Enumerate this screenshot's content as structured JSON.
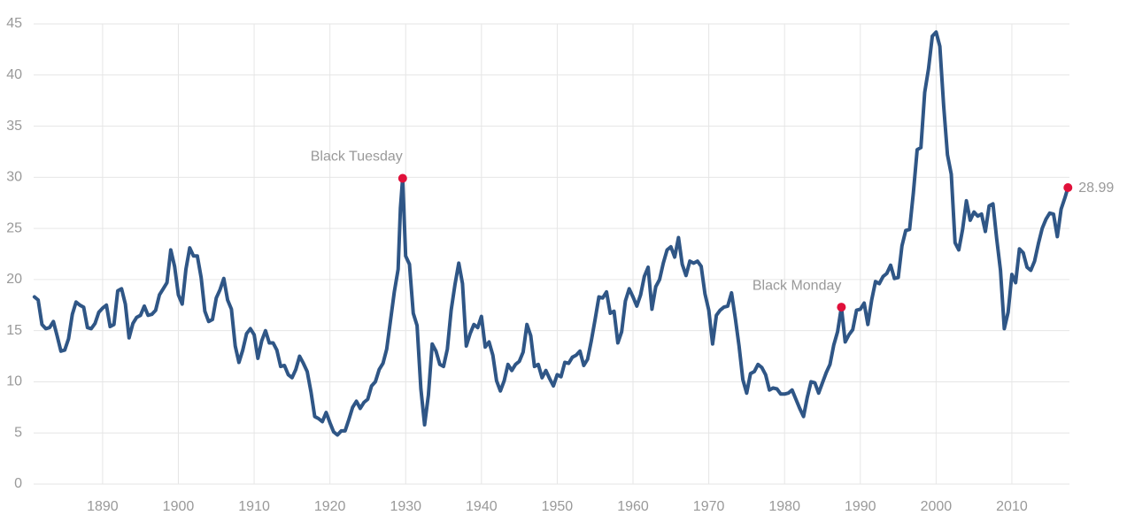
{
  "chart_data": {
    "type": "line",
    "color": "#2f5686",
    "marker_color": "#e0103a",
    "grid": true,
    "xlim": [
      1880.9,
      2017.6
    ],
    "ylim": [
      0,
      45
    ],
    "xticks": [
      1890,
      1900,
      1910,
      1920,
      1930,
      1940,
      1950,
      1960,
      1970,
      1980,
      1990,
      2000,
      2010
    ],
    "yticks": [
      0,
      5,
      10,
      15,
      20,
      25,
      30,
      35,
      40,
      45
    ],
    "x": [
      1881,
      1881.5,
      1882,
      1882.5,
      1883,
      1883.5,
      1884,
      1884.5,
      1885,
      1885.5,
      1886,
      1886.5,
      1887,
      1887.5,
      1888,
      1888.5,
      1889,
      1889.5,
      1890,
      1890.5,
      1891,
      1891.5,
      1892,
      1892.5,
      1893,
      1893.5,
      1894,
      1894.5,
      1895,
      1895.5,
      1896,
      1896.5,
      1897,
      1897.5,
      1898,
      1898.5,
      1899,
      1899.5,
      1900,
      1900.5,
      1901,
      1901.5,
      1902,
      1902.5,
      1903,
      1903.5,
      1904,
      1904.5,
      1905,
      1905.5,
      1906,
      1906.5,
      1907,
      1907.5,
      1908,
      1908.5,
      1909,
      1909.5,
      1910,
      1910.5,
      1911,
      1911.5,
      1912,
      1912.5,
      1913,
      1913.5,
      1914,
      1914.5,
      1915,
      1915.5,
      1916,
      1916.5,
      1917,
      1917.5,
      1918,
      1918.5,
      1919,
      1919.5,
      1920,
      1920.5,
      1921,
      1921.5,
      1922,
      1922.5,
      1923,
      1923.5,
      1924,
      1924.5,
      1925,
      1925.5,
      1926,
      1926.5,
      1927,
      1927.5,
      1928,
      1928.5,
      1929,
      1929.3,
      1929.6,
      1930,
      1930.5,
      1931,
      1931.5,
      1932,
      1932.5,
      1933,
      1933.5,
      1934,
      1934.5,
      1935,
      1935.5,
      1936,
      1936.5,
      1937,
      1937.5,
      1938,
      1938.5,
      1939,
      1939.5,
      1940,
      1940.5,
      1941,
      1941.5,
      1942,
      1942.5,
      1943,
      1943.5,
      1944,
      1944.5,
      1945,
      1945.5,
      1946,
      1946.5,
      1947,
      1947.5,
      1948,
      1948.5,
      1949,
      1949.5,
      1950,
      1950.5,
      1951,
      1951.5,
      1952,
      1952.5,
      1953,
      1953.5,
      1954,
      1954.5,
      1955,
      1955.5,
      1956,
      1956.5,
      1957,
      1957.5,
      1958,
      1958.5,
      1959,
      1959.5,
      1960,
      1960.5,
      1961,
      1961.5,
      1962,
      1962.5,
      1963,
      1963.5,
      1964,
      1964.5,
      1965,
      1965.5,
      1966,
      1966.5,
      1967,
      1967.5,
      1968,
      1968.5,
      1969,
      1969.5,
      1970,
      1970.5,
      1971,
      1971.5,
      1972,
      1972.5,
      1973,
      1973.5,
      1974,
      1974.5,
      1975,
      1975.5,
      1976,
      1976.5,
      1977,
      1977.5,
      1978,
      1978.5,
      1979,
      1979.5,
      1980,
      1980.5,
      1981,
      1981.5,
      1982,
      1982.5,
      1983,
      1983.5,
      1984,
      1984.5,
      1985,
      1985.5,
      1986,
      1986.5,
      1987,
      1987.5,
      1988,
      1988.5,
      1989,
      1989.5,
      1990,
      1990.5,
      1991,
      1991.5,
      1992,
      1992.5,
      1993,
      1993.5,
      1994,
      1994.5,
      1995,
      1995.5,
      1996,
      1996.5,
      1997,
      1997.5,
      1998,
      1998.5,
      1999,
      1999.5,
      2000,
      2000.5,
      2001,
      2001.5,
      2002,
      2002.5,
      2003,
      2003.5,
      2004,
      2004.5,
      2005,
      2005.5,
      2006,
      2006.5,
      2007,
      2007.5,
      2008,
      2008.5,
      2009,
      2009.5,
      2010,
      2010.5,
      2011,
      2011.5,
      2012,
      2012.5,
      2013,
      2013.5,
      2014,
      2014.5,
      2015,
      2015.5,
      2016,
      2016.5,
      2017,
      2017.4
    ],
    "values": [
      18.3,
      18.0,
      15.6,
      15.2,
      15.3,
      15.9,
      14.5,
      13.0,
      13.1,
      14.2,
      16.6,
      17.8,
      17.5,
      17.3,
      15.3,
      15.2,
      15.7,
      16.8,
      17.2,
      17.5,
      15.4,
      15.6,
      18.9,
      19.1,
      17.6,
      14.3,
      15.7,
      16.3,
      16.5,
      17.4,
      16.5,
      16.6,
      17.0,
      18.5,
      19.1,
      19.7,
      22.9,
      21.3,
      18.5,
      17.6,
      21.0,
      23.1,
      22.3,
      22.3,
      20.2,
      16.9,
      15.9,
      16.1,
      18.2,
      19.0,
      20.1,
      18.0,
      17.1,
      13.5,
      11.9,
      13.1,
      14.7,
      15.2,
      14.6,
      12.3,
      14.0,
      15.0,
      13.8,
      13.8,
      13.1,
      11.5,
      11.6,
      10.7,
      10.4,
      11.2,
      12.5,
      11.8,
      11.0,
      9.0,
      6.6,
      6.4,
      6.1,
      7.0,
      6.0,
      5.1,
      4.8,
      5.2,
      5.2,
      6.3,
      7.5,
      8.1,
      7.4,
      8.0,
      8.3,
      9.6,
      10.0,
      11.2,
      11.8,
      13.2,
      16.0,
      18.8,
      21.0,
      27.0,
      29.9,
      22.3,
      21.5,
      16.7,
      15.5,
      9.3,
      5.8,
      8.7,
      13.7,
      13.0,
      11.7,
      11.5,
      13.2,
      17.0,
      19.5,
      21.6,
      19.6,
      13.5,
      14.7,
      15.6,
      15.3,
      16.4,
      13.4,
      13.9,
      12.6,
      10.1,
      9.1,
      10.1,
      11.7,
      11.1,
      11.7,
      12.0,
      12.9,
      15.6,
      14.5,
      11.5,
      11.7,
      10.4,
      11.1,
      10.3,
      9.6,
      10.7,
      10.5,
      11.9,
      11.8,
      12.4,
      12.6,
      13.0,
      11.6,
      12.2,
      14.0,
      16.1,
      18.3,
      18.2,
      18.8,
      16.7,
      16.9,
      13.8,
      14.9,
      17.9,
      19.1,
      18.3,
      17.4,
      18.5,
      20.3,
      21.2,
      17.1,
      19.3,
      20.0,
      21.6,
      22.9,
      23.2,
      22.2,
      24.1,
      21.5,
      20.4,
      21.8,
      21.6,
      21.8,
      21.3,
      18.6,
      17.0,
      13.7,
      16.5,
      17.0,
      17.3,
      17.4,
      18.7,
      16.2,
      13.5,
      10.2,
      8.9,
      10.8,
      11.0,
      11.7,
      11.4,
      10.7,
      9.2,
      9.4,
      9.3,
      8.8,
      8.8,
      8.9,
      9.2,
      8.3,
      7.4,
      6.6,
      8.5,
      10.0,
      9.9,
      8.9,
      9.9,
      10.9,
      11.7,
      13.6,
      14.9,
      17.3,
      13.9,
      14.6,
      15.1,
      17.0,
      17.1,
      17.7,
      15.6,
      18.0,
      19.8,
      19.6,
      20.3,
      20.6,
      21.4,
      20.1,
      20.2,
      23.3,
      24.8,
      24.9,
      28.5,
      32.7,
      32.9,
      38.3,
      40.6,
      43.8,
      44.2,
      42.8,
      37.0,
      32.2,
      30.3,
      23.6,
      22.9,
      24.9,
      27.7,
      25.8,
      26.6,
      26.2,
      26.4,
      24.7,
      27.2,
      27.4,
      24.0,
      20.9,
      15.2,
      16.8,
      20.5,
      19.7,
      23.0,
      22.6,
      21.2,
      20.9,
      21.8,
      23.5,
      25.0,
      25.9,
      26.5,
      26.4,
      24.2,
      26.9,
      28.0,
      28.99
    ],
    "annotations": [
      {
        "label": "Black Tuesday",
        "x": 1929.6,
        "y": 29.9
      },
      {
        "label": "Black Monday",
        "x": 1987.5,
        "y": 17.3
      },
      {
        "label": "28.99",
        "x": 2017.4,
        "y": 28.99
      }
    ]
  }
}
